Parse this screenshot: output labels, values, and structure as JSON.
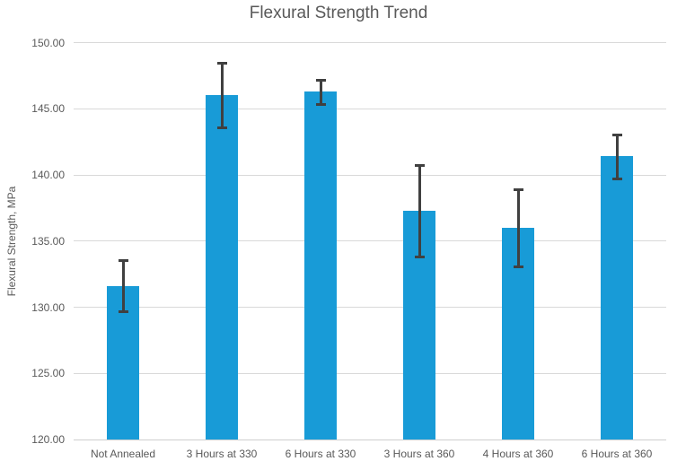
{
  "chart_data": {
    "type": "bar",
    "title": "Flexural Strength Trend",
    "xlabel": "",
    "ylabel": "Flexural Strength, MPa",
    "categories": [
      "Not Annealed",
      "3 Hours at 330",
      "6 Hours at 330",
      "3 Hours at 360",
      "4 Hours at 360",
      "6 Hours at 360"
    ],
    "values": [
      131.6,
      146.05,
      146.3,
      137.3,
      136.0,
      141.4
    ],
    "error_bars": [
      2.0,
      2.5,
      1.0,
      3.5,
      3.0,
      1.75
    ],
    "ylim": [
      120,
      150
    ],
    "yticks": [
      120,
      125,
      130,
      135,
      140,
      145,
      150
    ],
    "ytick_labels": [
      "120.00",
      "125.00",
      "130.00",
      "135.00",
      "140.00",
      "145.00",
      "150.00"
    ],
    "grid": true,
    "legend": false,
    "bar_color": "#189BD7",
    "error_bar_color": "#404040",
    "gridline_color": "#D9D9D9",
    "axis_line_color": "#CFCFCF",
    "text_color": "#595959"
  }
}
